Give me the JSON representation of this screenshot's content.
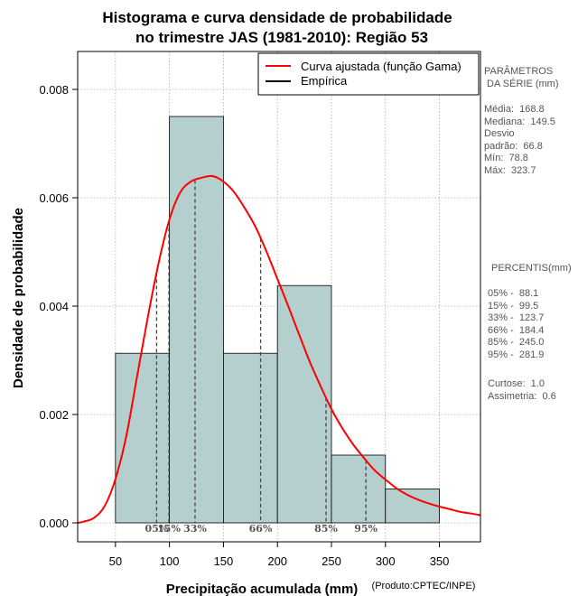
{
  "chart_data": {
    "type": "bar",
    "title_line1": "Histograma e curva densidade de probabilidade",
    "title_line2": "no trimestre JAS (1981-2010): Região 53",
    "xlabel": "Precipitação acumulada (mm)",
    "ylabel": "Densidade de probabilidade",
    "credit": "(Produto:CPTEC/INPE)",
    "xlim": [
      15,
      388
    ],
    "ylim": [
      -0.00035,
      0.0087
    ],
    "x_ticks": [
      50,
      100,
      150,
      200,
      250,
      300,
      350
    ],
    "x_tick_labels": [
      "50",
      "100",
      "150",
      "200",
      "250",
      "300",
      "350"
    ],
    "y_ticks": [
      0,
      0.002,
      0.004,
      0.006,
      0.008
    ],
    "y_tick_labels": [
      "0.000",
      "0.002",
      "0.004",
      "0.006",
      "0.008"
    ],
    "grid": true,
    "histogram": {
      "name": "Empírica",
      "bins": [
        {
          "from": 50,
          "to": 100,
          "density": 0.00313
        },
        {
          "from": 100,
          "to": 150,
          "density": 0.0075
        },
        {
          "from": 150,
          "to": 200,
          "density": 0.00313
        },
        {
          "from": 200,
          "to": 250,
          "density": 0.00438
        },
        {
          "from": 250,
          "to": 300,
          "density": 0.00125
        },
        {
          "from": 300,
          "to": 350,
          "density": 0.000625
        }
      ]
    },
    "fitted_curve": {
      "name": "Curva ajustada (função Gama)",
      "x": [
        15,
        20,
        30,
        40,
        50,
        60,
        70,
        80,
        90,
        100,
        110,
        120,
        130,
        140,
        150,
        160,
        170,
        180,
        190,
        200,
        210,
        220,
        230,
        240,
        250,
        260,
        270,
        280,
        290,
        300,
        310,
        320,
        330,
        340,
        350,
        360,
        370,
        380,
        388
      ],
      "y": [
        0.0,
        2e-05,
        9e-05,
        0.00031,
        0.00081,
        0.0016,
        0.0027,
        0.0038,
        0.0048,
        0.0056,
        0.0061,
        0.0063,
        0.00637,
        0.0064,
        0.0063,
        0.0061,
        0.0058,
        0.00545,
        0.005,
        0.0045,
        0.004,
        0.00348,
        0.00297,
        0.00252,
        0.0021,
        0.00175,
        0.00145,
        0.0012,
        0.00097,
        0.0008,
        0.00064,
        0.00052,
        0.00043,
        0.00036,
        0.0003,
        0.00025,
        0.0002,
        0.00017,
        0.00014
      ]
    },
    "percentile_lines": [
      {
        "label": "05%",
        "value": 88.1
      },
      {
        "label": "15%",
        "value": 99.5
      },
      {
        "label": "33%",
        "value": 123.7
      },
      {
        "label": "66%",
        "value": 184.4
      },
      {
        "label": "85%",
        "value": 245.0
      },
      {
        "label": "95%",
        "value": 281.9
      }
    ],
    "legend": [
      "Curva ajustada (função Gama)",
      "Empírica"
    ],
    "legend_position": "top-right",
    "colors": {
      "bar_fill": "#b5cece",
      "curve": "#ff0000",
      "grid": "#aaaaaa",
      "percentile_line": "#444444"
    }
  },
  "side_panel": {
    "params_title": "PARÂMETROS\n DA SÉRIE (mm)",
    "params": "Média:  168.8\nMediana:  149.5\nDesvio\npadrão:  66.8\nMín:  78.8\nMáx:  323.7",
    "percentis_title": "PERCENTIS(mm)",
    "percentis": "05% -  88.1\n15% -  99.5\n33% -  123.7\n66% -  184.4\n85% -  245.0\n95% -  281.9",
    "stats": "Curtose:  1.0\nAssimetria:  0.6"
  }
}
